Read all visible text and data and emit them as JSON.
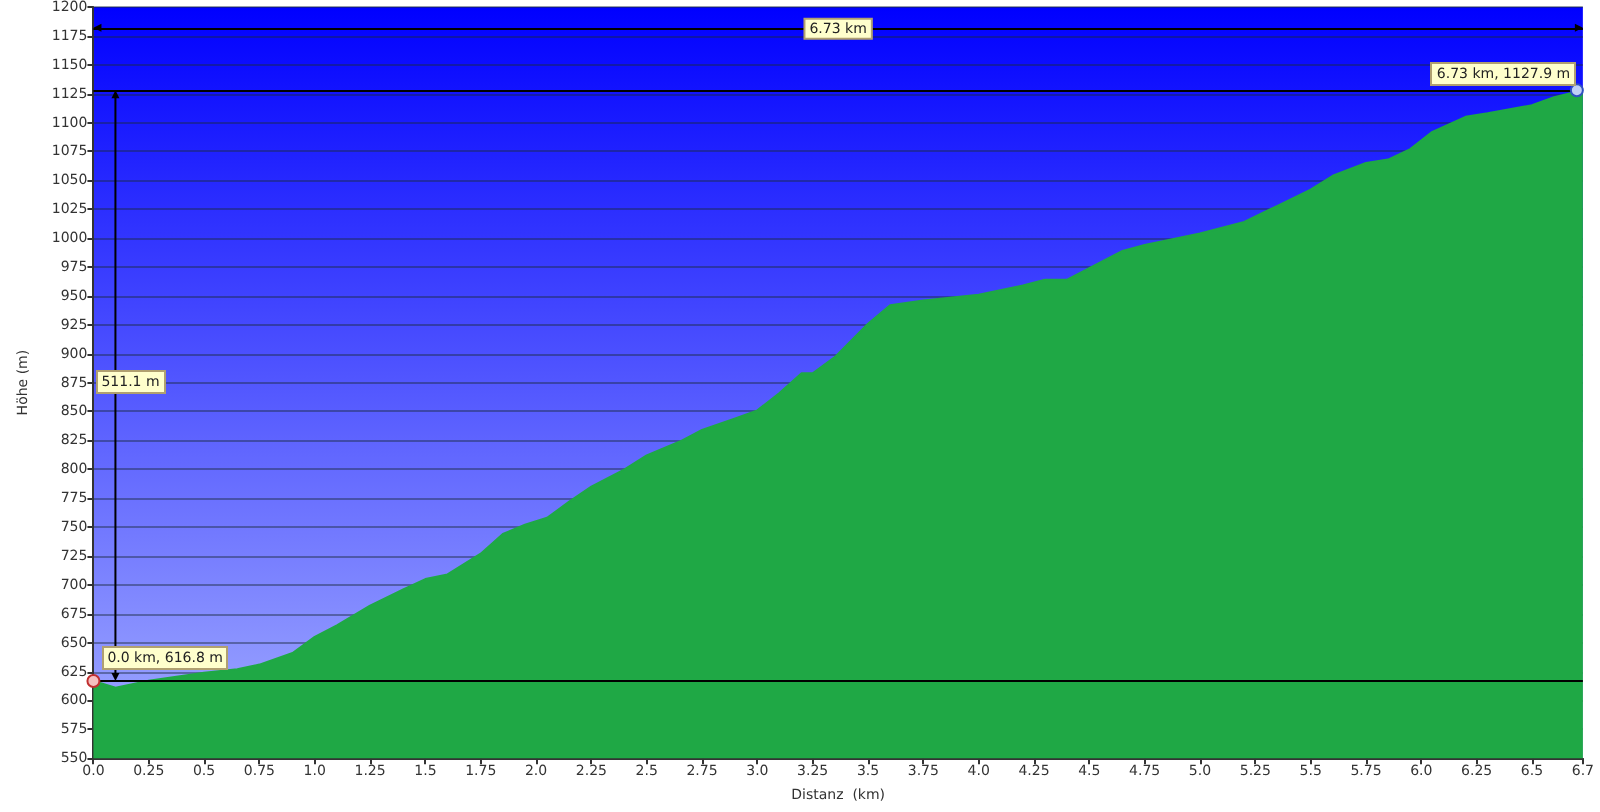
{
  "chart_data": {
    "type": "area",
    "xlabel": "Distanz  (km)",
    "ylabel": "Höhe (m)",
    "x": [
      0,
      0.1,
      0.25,
      0.5,
      0.65,
      0.75,
      0.9,
      1.0,
      1.1,
      1.25,
      1.4,
      1.5,
      1.6,
      1.75,
      1.85,
      1.95,
      2.05,
      2.15,
      2.25,
      2.4,
      2.5,
      2.65,
      2.75,
      2.9,
      3.0,
      3.1,
      3.2,
      3.25,
      3.35,
      3.5,
      3.6,
      3.75,
      4.0,
      4.2,
      4.3,
      4.4,
      4.5,
      4.65,
      4.75,
      5.0,
      5.2,
      5.35,
      5.5,
      5.6,
      5.75,
      5.85,
      5.95,
      6.05,
      6.2,
      6.3,
      6.5,
      6.6,
      6.73
    ],
    "series": [
      {
        "color": "#1fa845",
        "values": [
          616.8,
          611,
          617,
          624,
          627,
          631,
          641,
          655,
          665,
          682,
          696,
          705,
          709,
          727,
          744,
          752,
          758,
          772,
          785,
          800,
          812,
          824,
          834,
          844,
          851,
          866,
          883,
          883,
          897,
          926,
          942,
          946,
          951,
          959,
          964,
          964,
          974,
          989,
          994,
          1004,
          1014,
          1028,
          1042,
          1054,
          1065,
          1068,
          1077,
          1092,
          1105,
          1108,
          1115,
          1122,
          1127.9
        ]
      }
    ],
    "xlim": [
      0,
      6.73
    ],
    "ylim": [
      550,
      1200
    ],
    "xticks": [
      {
        "value": 0,
        "label": "0.0"
      },
      0.25,
      0.5,
      0.75,
      {
        "value": 1,
        "label": "1.0"
      },
      1.25,
      1.5,
      1.75,
      {
        "value": 2,
        "label": "2.0"
      },
      2.25,
      2.5,
      2.75,
      {
        "value": 3,
        "label": "3.0"
      },
      3.25,
      3.5,
      3.75,
      {
        "value": 4,
        "label": "4.0"
      },
      4.25,
      4.5,
      4.75,
      {
        "value": 5,
        "label": "5.0"
      },
      5.25,
      5.5,
      5.75,
      {
        "value": 6,
        "label": "6.0"
      },
      6.25,
      6.5,
      {
        "value": 6.73,
        "label": "6.7"
      }
    ],
    "yticks": [
      550,
      575,
      600,
      625,
      650,
      675,
      700,
      725,
      750,
      775,
      800,
      825,
      850,
      875,
      900,
      925,
      950,
      975,
      1000,
      1025,
      1050,
      1075,
      1100,
      1125,
      1150,
      1175,
      1200
    ],
    "grid": "y",
    "marker": "none",
    "ref_lines": [
      {
        "axis": "y",
        "value": 616.8,
        "color": "#000000"
      },
      {
        "axis": "y",
        "value": 1127.9,
        "color": "#000000"
      },
      {
        "axis": "y",
        "value": 1182,
        "color": "#000000",
        "label": "6.73 km"
      }
    ],
    "annotations": [
      {
        "text": "0.0 km, 616.8 m",
        "x": 0,
        "y": 616.8
      },
      {
        "text": "6.73 km, 1127.9 m",
        "x": 6.73,
        "y": 1127.9
      },
      "511.1 m"
    ]
  }
}
